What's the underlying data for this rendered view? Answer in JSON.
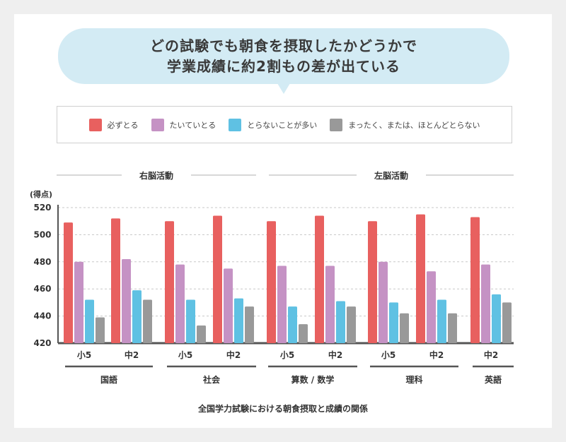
{
  "headline": {
    "line1": "どの試験でも朝食を摂取したかどうかで",
    "line2": "学業成績に約2割もの差が出ている"
  },
  "legend": [
    {
      "label": "必ずとる",
      "color": "#e8605f"
    },
    {
      "label": "たいていとる",
      "color": "#c592c4"
    },
    {
      "label": "とらないことが多い",
      "color": "#5fc1e3"
    },
    {
      "label": "まったく、または、ほとんどとらない",
      "color": "#999999"
    }
  ],
  "groups": {
    "right": "右脳活動",
    "left": "左脳活動"
  },
  "caption": "全国学力試験における朝食摂取と成績の関係",
  "chart_data": {
    "type": "bar",
    "ylabel": "(得点)",
    "ylim": [
      420,
      520
    ],
    "yticks": [
      420,
      440,
      460,
      480,
      500,
      520
    ],
    "grid": true,
    "subjects": [
      "国語",
      "社会",
      "算数 / 数学",
      "理科",
      "英語"
    ],
    "categories": [
      {
        "subject": "国語",
        "grade": "小5"
      },
      {
        "subject": "国語",
        "grade": "中2"
      },
      {
        "subject": "社会",
        "grade": "小5"
      },
      {
        "subject": "社会",
        "grade": "中2"
      },
      {
        "subject": "算数 / 数学",
        "grade": "小5"
      },
      {
        "subject": "算数 / 数学",
        "grade": "中2"
      },
      {
        "subject": "理科",
        "grade": "小5"
      },
      {
        "subject": "理科",
        "grade": "中2"
      },
      {
        "subject": "英語",
        "grade": "中2"
      }
    ],
    "series": [
      {
        "name": "必ずとる",
        "values": [
          509,
          512,
          510,
          514,
          510,
          514,
          510,
          515,
          513
        ]
      },
      {
        "name": "たいていとる",
        "values": [
          480,
          482,
          478,
          475,
          477,
          477,
          480,
          473,
          478
        ]
      },
      {
        "name": "とらないことが多い",
        "values": [
          452,
          459,
          452,
          453,
          447,
          451,
          450,
          452,
          456
        ]
      },
      {
        "name": "まったく、または、ほとんどとらない",
        "values": [
          439,
          452,
          433,
          447,
          434,
          447,
          442,
          442,
          450
        ]
      }
    ]
  }
}
